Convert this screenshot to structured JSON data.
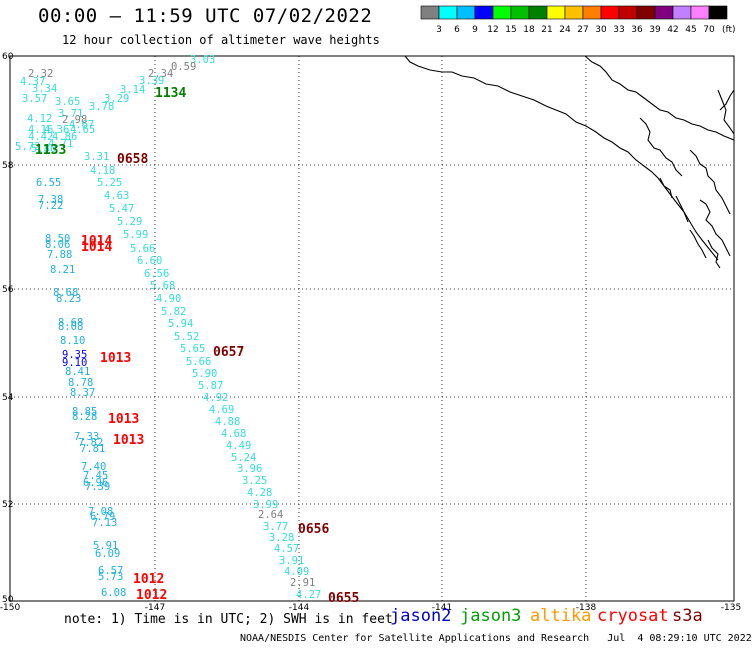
{
  "header": {
    "title": "00:00 – 11:59 UTC 07/02/2022",
    "subtitle": "12 hour collection of altimeter wave heights"
  },
  "scale": {
    "unit": "(ft)",
    "colors": [
      "#808080",
      "#00ffff",
      "#00bfff",
      "#0000ff",
      "#00ff00",
      "#00c000",
      "#008000",
      "#ffff00",
      "#ffc000",
      "#ff8000",
      "#ff0000",
      "#c00000",
      "#800000",
      "#800080",
      "#c080ff",
      "#ff80ff",
      "#000000"
    ],
    "labels": [
      "3",
      "6",
      "9",
      "12",
      "15",
      "18",
      "21",
      "24",
      "27",
      "30",
      "33",
      "36",
      "39",
      "42",
      "45",
      "70"
    ]
  },
  "axes": {
    "lat_labels": [
      "60",
      "58",
      "56",
      "54",
      "52",
      "50"
    ],
    "lon_labels": [
      "-150",
      "-147",
      "-144",
      "-141",
      "-138",
      "-135"
    ]
  },
  "legend": {
    "note": "note: 1) Time is in UTC; 2) SWH is in feet",
    "satellites": [
      {
        "name": "jason2",
        "color": "#0000cc"
      },
      {
        "name": "jason3",
        "color": "#00a000"
      },
      {
        "name": "altika",
        "color": "#ff9900"
      },
      {
        "name": "cryosat",
        "color": "#ff0000"
      },
      {
        "name": "s3a",
        "color": "#800000"
      }
    ],
    "credit": "NOAA/NESDIS Center for Satellite Applications and Research   Jul  4 08:29:10 UTC 2022"
  },
  "track_east": {
    "points": [
      {
        "v": "3.03",
        "c": "#33dddd"
      },
      {
        "v": "0.59",
        "c": "#808080"
      },
      {
        "v": "2.34",
        "c": "#808080"
      },
      {
        "v": "3.39",
        "c": "#33dddd"
      },
      {
        "v": "3.14",
        "c": "#33dddd"
      },
      {
        "v": "3.29",
        "c": "#33dddd"
      },
      {
        "v": "3.78",
        "c": "#33dddd"
      },
      {
        "v": "3.71",
        "c": "#33dddd"
      },
      {
        "v": "2.98",
        "c": "#808080"
      },
      {
        "v": "4.67",
        "c": "#33dddd"
      },
      {
        "v": "4.65",
        "c": "#33dddd"
      },
      {
        "v": "4.86",
        "c": "#33dddd"
      },
      {
        "v": "4.71",
        "c": "#33dddd"
      },
      {
        "v": "3.31",
        "c": "#33dddd"
      },
      {
        "v": "4.18",
        "c": "#33dddd"
      },
      {
        "v": "5.25",
        "c": "#33dddd"
      },
      {
        "v": "4.63",
        "c": "#33dddd"
      },
      {
        "v": "5.47",
        "c": "#33dddd"
      },
      {
        "v": "5.29",
        "c": "#33dddd"
      },
      {
        "v": "5.99",
        "c": "#33dddd"
      },
      {
        "v": "5.66",
        "c": "#33dddd"
      },
      {
        "v": "6.60",
        "c": "#33dddd"
      },
      {
        "v": "6.56",
        "c": "#33dddd"
      },
      {
        "v": "5.68",
        "c": "#33dddd"
      },
      {
        "v": "4.90",
        "c": "#33dddd"
      },
      {
        "v": "5.82",
        "c": "#33dddd"
      },
      {
        "v": "5.94",
        "c": "#33dddd"
      },
      {
        "v": "5.52",
        "c": "#33dddd"
      },
      {
        "v": "5.65",
        "c": "#33dddd"
      },
      {
        "v": "5.66",
        "c": "#33dddd"
      },
      {
        "v": "5.90",
        "c": "#33dddd"
      },
      {
        "v": "5.87",
        "c": "#33dddd"
      },
      {
        "v": "4.92",
        "c": "#33dddd"
      },
      {
        "v": "4.69",
        "c": "#33dddd"
      },
      {
        "v": "4.88",
        "c": "#33dddd"
      },
      {
        "v": "4.68",
        "c": "#33dddd"
      },
      {
        "v": "4.49",
        "c": "#33dddd"
      },
      {
        "v": "5.24",
        "c": "#33dddd"
      },
      {
        "v": "3.96",
        "c": "#33dddd"
      },
      {
        "v": "3.25",
        "c": "#33dddd"
      },
      {
        "v": "4.28",
        "c": "#33dddd"
      },
      {
        "v": "3.99",
        "c": "#33dddd"
      },
      {
        "v": "2.64",
        "c": "#808080"
      },
      {
        "v": "3.77",
        "c": "#33dddd"
      },
      {
        "v": "3.28",
        "c": "#33dddd"
      },
      {
        "v": "4.57",
        "c": "#33dddd"
      },
      {
        "v": "3.91",
        "c": "#33dddd"
      },
      {
        "v": "4.09",
        "c": "#33dddd"
      },
      {
        "v": "2.91",
        "c": "#808080"
      },
      {
        "v": "4.27",
        "c": "#33dddd"
      }
    ]
  },
  "track_west": {
    "points": [
      {
        "v": "2.32",
        "c": "#808080"
      },
      {
        "v": "4.37",
        "c": "#33dddd"
      },
      {
        "v": "3.34",
        "c": "#33dddd"
      },
      {
        "v": "3.57",
        "c": "#33dddd"
      },
      {
        "v": "3.65",
        "c": "#33dddd"
      },
      {
        "v": "4.12",
        "c": "#33dddd"
      },
      {
        "v": "4.16",
        "c": "#33dddd"
      },
      {
        "v": "4.36",
        "c": "#33dddd"
      },
      {
        "v": "4.42",
        "c": "#33dddd"
      },
      {
        "v": "5.72",
        "c": "#33dddd"
      },
      {
        "v": "5.80",
        "c": "#33dddd"
      },
      {
        "v": "6.55",
        "c": "#1fb0e0"
      },
      {
        "v": "7.38",
        "c": "#1fb0e0"
      },
      {
        "v": "7.22",
        "c": "#1fb0e0"
      },
      {
        "v": "8.50",
        "c": "#1fb0e0"
      },
      {
        "v": "8.06",
        "c": "#1fb0e0"
      },
      {
        "v": "7.88",
        "c": "#1fb0e0"
      },
      {
        "v": "8.21",
        "c": "#1fb0e0"
      },
      {
        "v": "8.68",
        "c": "#1fb0e0"
      },
      {
        "v": "8.23",
        "c": "#1fb0e0"
      },
      {
        "v": "8.68",
        "c": "#1fb0e0"
      },
      {
        "v": "8.08",
        "c": "#1fb0e0"
      },
      {
        "v": "8.10",
        "c": "#1fb0e0"
      },
      {
        "v": "9.35",
        "c": "#0000ff"
      },
      {
        "v": "9.10",
        "c": "#0000ff"
      },
      {
        "v": "8.41",
        "c": "#1fb0e0"
      },
      {
        "v": "8.78",
        "c": "#1fb0e0"
      },
      {
        "v": "8.37",
        "c": "#1fb0e0"
      },
      {
        "v": "8.85",
        "c": "#1fb0e0"
      },
      {
        "v": "8.28",
        "c": "#1fb0e0"
      },
      {
        "v": "7.33",
        "c": "#1fb0e0"
      },
      {
        "v": "7.82",
        "c": "#1fb0e0"
      },
      {
        "v": "7.81",
        "c": "#1fb0e0"
      },
      {
        "v": "7.40",
        "c": "#1fb0e0"
      },
      {
        "v": "7.45",
        "c": "#1fb0e0"
      },
      {
        "v": "6.96",
        "c": "#1fb0e0"
      },
      {
        "v": "7.39",
        "c": "#1fb0e0"
      },
      {
        "v": "7.08",
        "c": "#1fb0e0"
      },
      {
        "v": "6.79",
        "c": "#1fb0e0"
      },
      {
        "v": "7.13",
        "c": "#1fb0e0"
      },
      {
        "v": "5.91",
        "c": "#1fb0e0"
      },
      {
        "v": "6.09",
        "c": "#1fb0e0"
      },
      {
        "v": "6.57",
        "c": "#1fb0e0"
      },
      {
        "v": "5.73",
        "c": "#1fb0e0"
      },
      {
        "v": "6.08",
        "c": "#1fb0e0"
      }
    ]
  },
  "pass_labels": [
    {
      "t": "1134",
      "c": "#008000"
    },
    {
      "t": "1133",
      "c": "#008000"
    },
    {
      "t": "0658",
      "c": "#800000"
    },
    {
      "t": "1014",
      "c": "#ff0000"
    },
    {
      "t": "1014",
      "c": "#ff0000"
    },
    {
      "t": "1013",
      "c": "#ff0000"
    },
    {
      "t": "0657",
      "c": "#800000"
    },
    {
      "t": "1013",
      "c": "#ff0000"
    },
    {
      "t": "1013",
      "c": "#ff0000"
    },
    {
      "t": "0656",
      "c": "#800000"
    },
    {
      "t": "1012",
      "c": "#ff0000"
    },
    {
      "t": "1012",
      "c": "#ff0000"
    },
    {
      "t": "0655",
      "c": "#800000"
    }
  ]
}
